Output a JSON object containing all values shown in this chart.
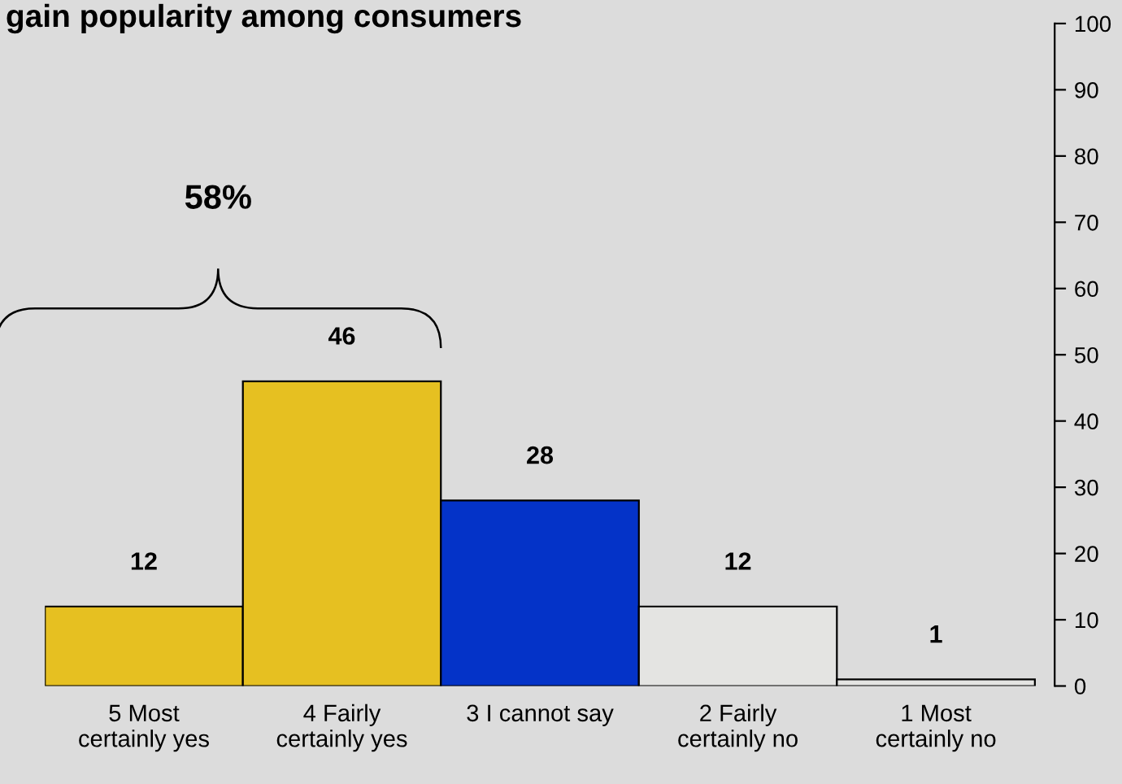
{
  "chart_data": {
    "type": "bar",
    "title": "gain popularity among consumers",
    "categories": [
      "5 Most\ncertainly yes",
      "4 Fairly\ncertainly yes",
      "3 I cannot say",
      "2 Fairly\ncertainly no",
      "1 Most\ncertainly no"
    ],
    "values": [
      12,
      46,
      28,
      12,
      1
    ],
    "colors": [
      "#e6c021",
      "#e6c021",
      "#0433c8",
      "#e4e4e2",
      "#e4e4e2"
    ],
    "data_labels": true,
    "ylim": [
      0,
      100
    ],
    "yticks": [
      0,
      10,
      20,
      30,
      40,
      50,
      60,
      70,
      80,
      90,
      100
    ],
    "grid": false,
    "legend": false,
    "annotations": [
      "58%"
    ]
  }
}
